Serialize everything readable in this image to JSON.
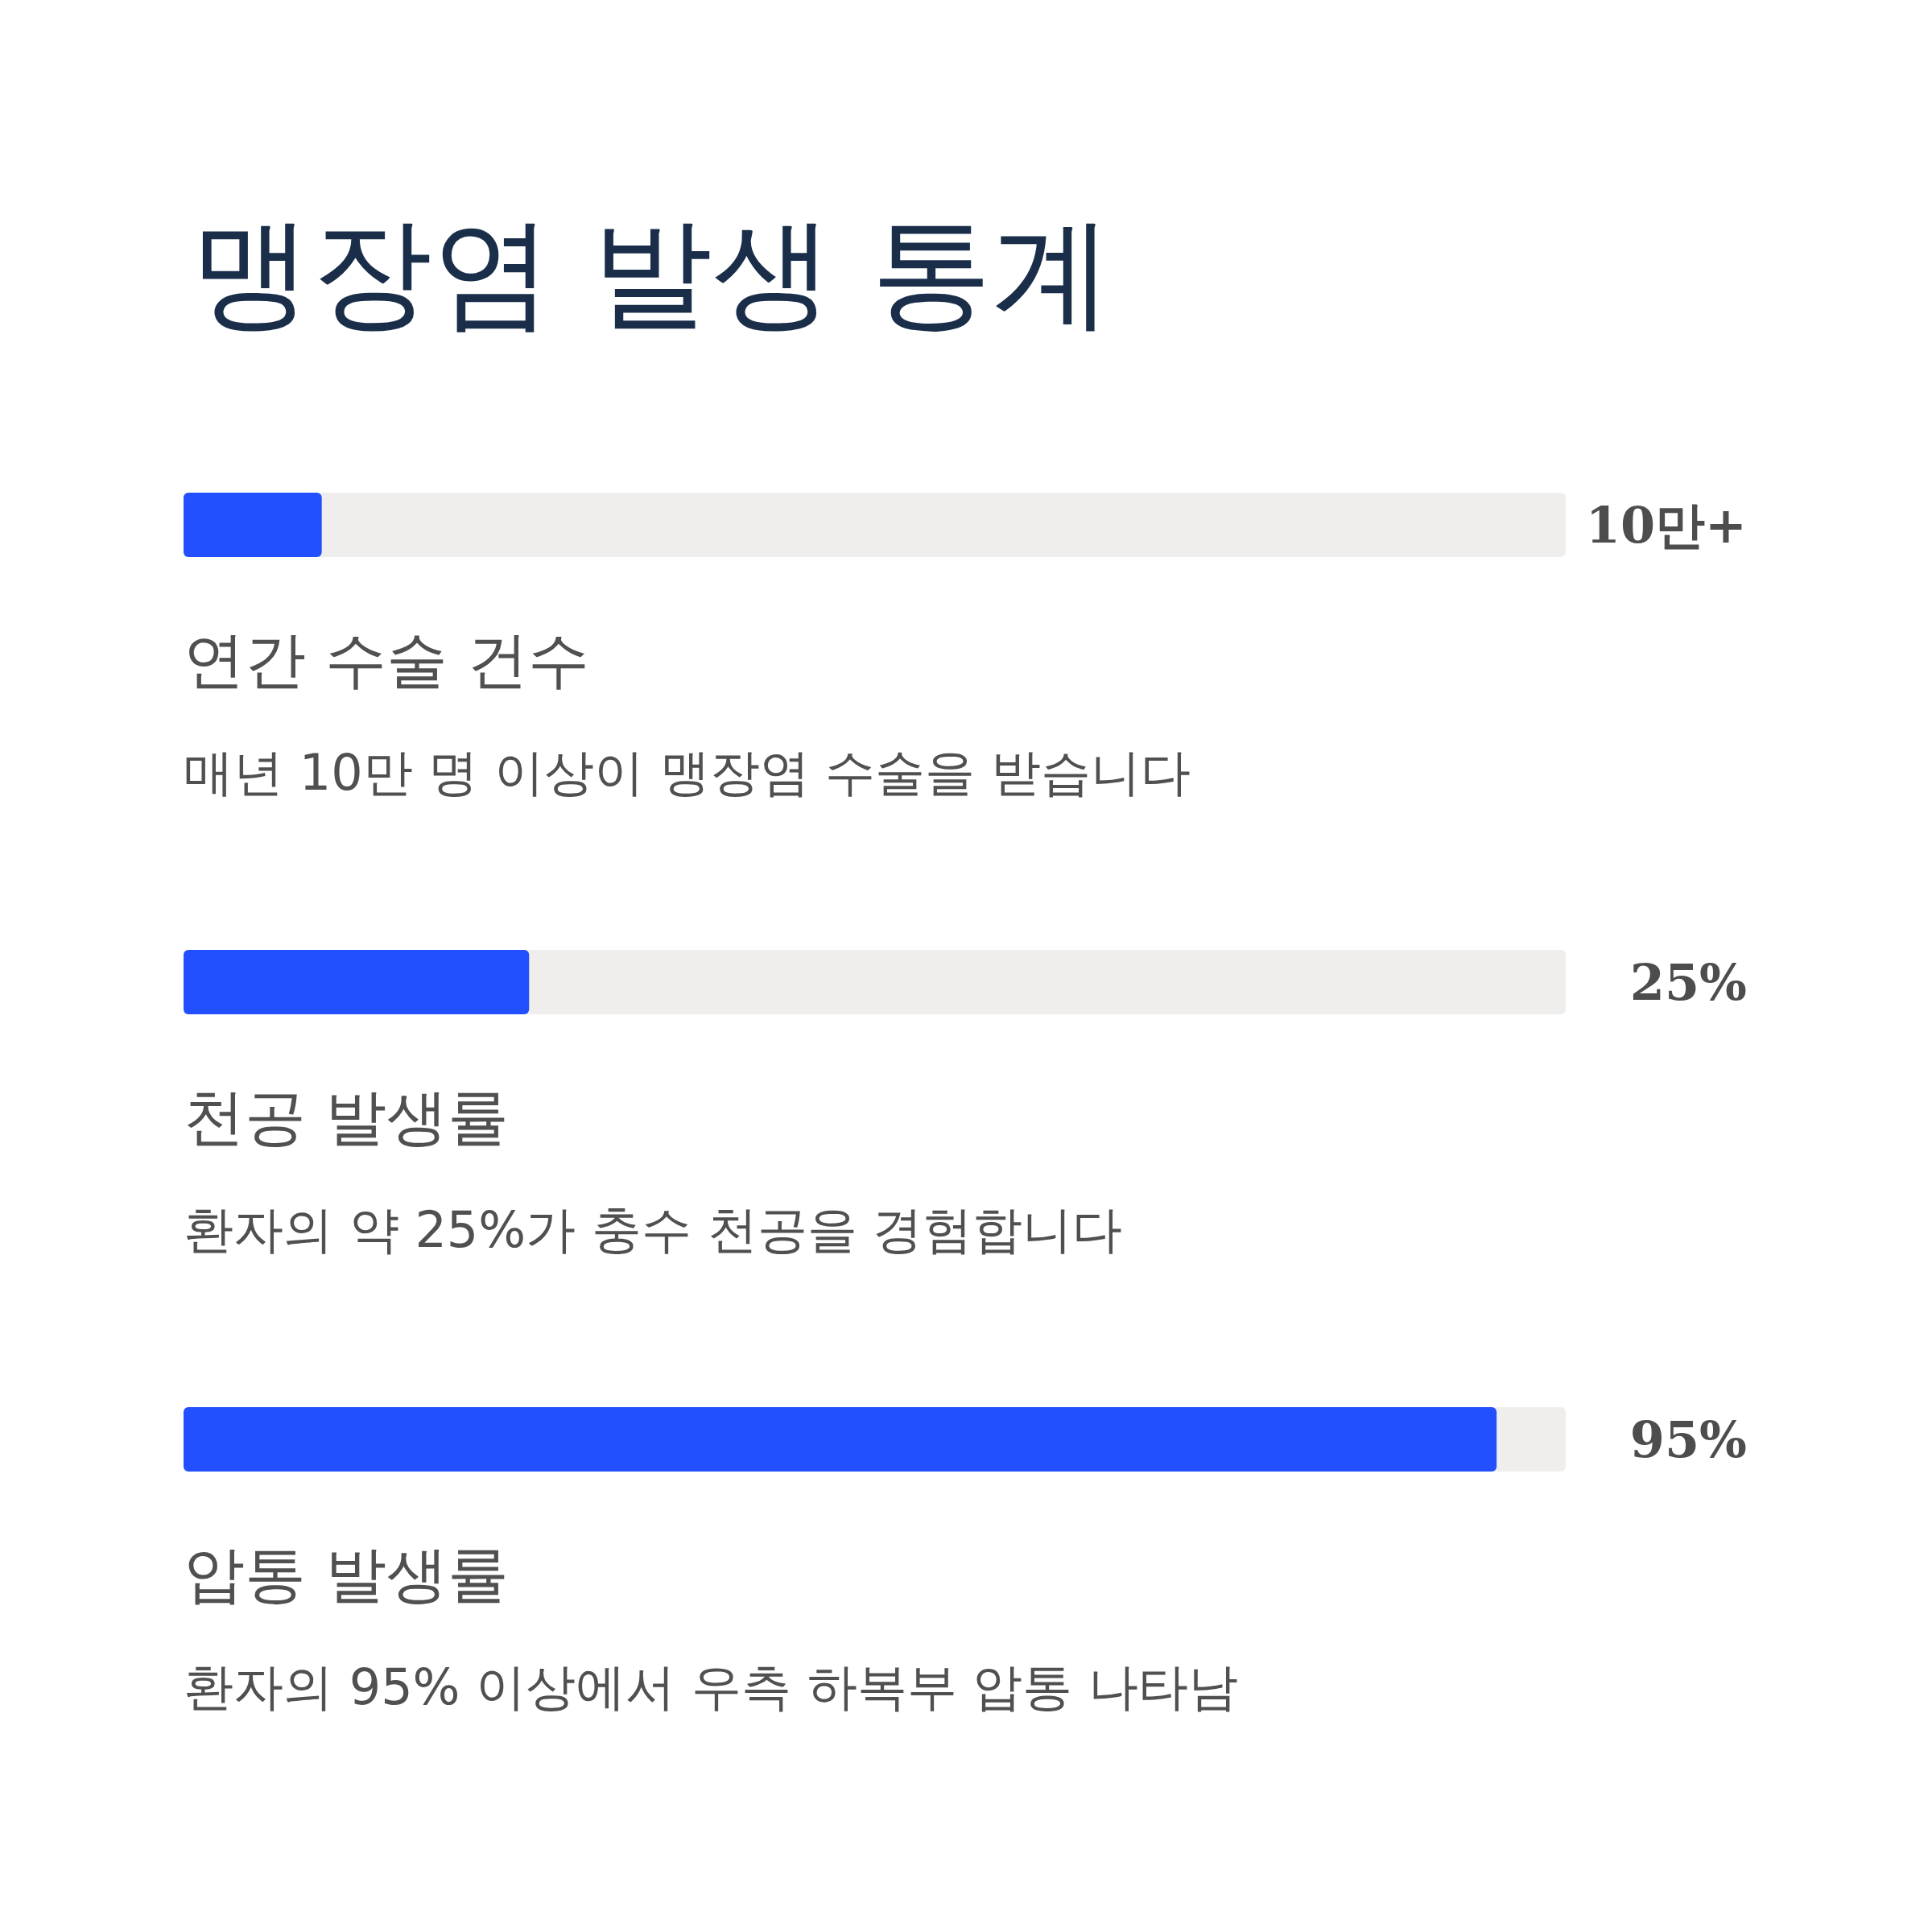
{
  "chart_data": {
    "type": "bar",
    "orientation": "horizontal",
    "title": "맹장염 발생 통계",
    "categories": [
      "연간 수술 건수",
      "천공 발생률",
      "압통 발생률"
    ],
    "values": [
      10,
      25,
      95
    ],
    "color": "#2350ff",
    "xlim": [
      0,
      100
    ],
    "value_labels": [
      "10만+",
      "25%",
      "95%"
    ],
    "tick_labels": "y",
    "annotations": [
      "매년 10만 명 이상이 맹장염 수술을 받습니다",
      "환자의 약 25%가 충수 천공을 경험합니다",
      "환자의 95% 이상에서 우측 하복부 압통 나타남"
    ]
  }
}
